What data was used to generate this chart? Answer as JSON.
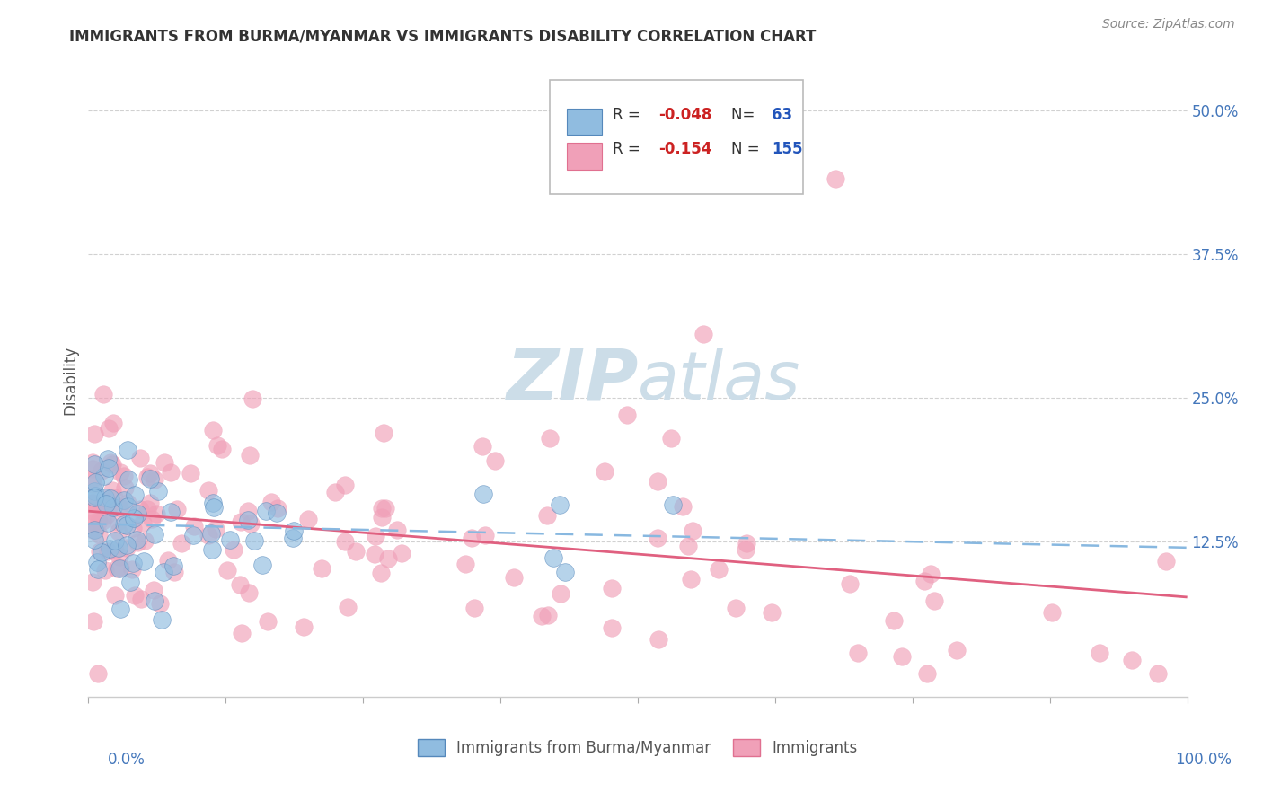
{
  "title": "IMMIGRANTS FROM BURMA/MYANMAR VS IMMIGRANTS DISABILITY CORRELATION CHART",
  "source": "Source: ZipAtlas.com",
  "ylabel": "Disability",
  "xlabel": "",
  "xlim": [
    0.0,
    1.0
  ],
  "ylim": [
    -0.01,
    0.54
  ],
  "yticks": [
    0.125,
    0.25,
    0.375,
    0.5
  ],
  "ytick_labels": [
    "12.5%",
    "25.0%",
    "37.5%",
    "50.0%"
  ],
  "blue_color": "#90bce0",
  "blue_edge_color": "#5588bb",
  "pink_color": "#f0a0b8",
  "pink_edge_color": "#e07090",
  "pink_line_color": "#e06080",
  "blue_line_color": "#88b8e0",
  "watermark_color": "#dde8f0",
  "background_color": "#ffffff",
  "grid_color": "#cccccc",
  "title_color": "#333333",
  "axis_label_color": "#555555",
  "tick_color": "#4477bb",
  "blue_R": -0.048,
  "blue_N": 63,
  "pink_R": -0.154,
  "pink_N": 155,
  "legend_R1": "-0.048",
  "legend_N1": "63",
  "legend_R2": "-0.154",
  "legend_N2": "155"
}
